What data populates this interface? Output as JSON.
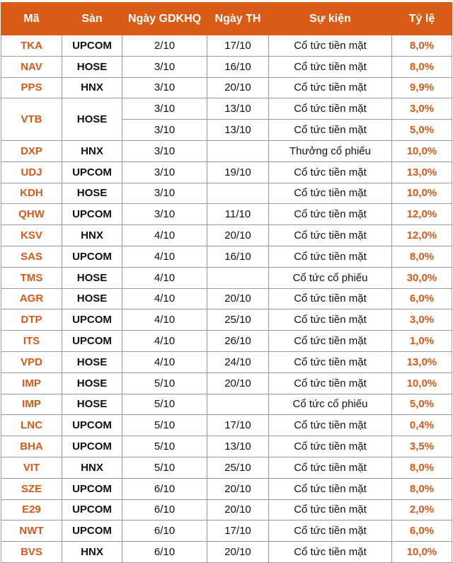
{
  "headers": [
    "Mã",
    "Sàn",
    "Ngày GDKHQ",
    "Ngày TH",
    "Sự kiện",
    "Tỷ lệ"
  ],
  "rows": [
    {
      "ma": "TKA",
      "san": "UPCOM",
      "gdkhq": "2/10",
      "th": "17/10",
      "sukien": "Cổ tức tiền mặt",
      "tyle": "8,0%"
    },
    {
      "ma": "NAV",
      "san": "HOSE",
      "gdkhq": "3/10",
      "th": "16/10",
      "sukien": "Cổ tức tiền mặt",
      "tyle": "8,0%"
    },
    {
      "ma": "PPS",
      "san": "HNX",
      "gdkhq": "3/10",
      "th": "20/10",
      "sukien": "Cổ tức tiền mặt",
      "tyle": "9,9%"
    },
    {
      "ma": "VTB",
      "san": "HOSE",
      "gdkhq": "3/10",
      "th": "13/10",
      "sukien": "Cổ tức tiền mặt",
      "tyle": "3,0%"
    },
    {
      "gdkhq": "3/10",
      "th": "13/10",
      "sukien": "Cổ tức tiền mặt",
      "tyle": "5,0%"
    },
    {
      "ma": "DXP",
      "san": "HNX",
      "gdkhq": "3/10",
      "th": "",
      "sukien": "Thưởng cổ phiếu",
      "tyle": "10,0%"
    },
    {
      "ma": "UDJ",
      "san": "UPCOM",
      "gdkhq": "3/10",
      "th": "19/10",
      "sukien": "Cổ tức tiền mặt",
      "tyle": "13,0%"
    },
    {
      "ma": "KDH",
      "san": "HOSE",
      "gdkhq": "3/10",
      "th": "",
      "sukien": "Cổ tức tiền mặt",
      "tyle": "10,0%"
    },
    {
      "ma": "QHW",
      "san": "UPCOM",
      "gdkhq": "3/10",
      "th": "11/10",
      "sukien": "Cổ tức tiền mặt",
      "tyle": "12,0%"
    },
    {
      "ma": "KSV",
      "san": "HNX",
      "gdkhq": "4/10",
      "th": "20/10",
      "sukien": "Cổ tức tiền mặt",
      "tyle": "12,0%"
    },
    {
      "ma": "SAS",
      "san": "UPCOM",
      "gdkhq": "4/10",
      "th": "16/10",
      "sukien": "Cổ tức tiền mặt",
      "tyle": "8,0%"
    },
    {
      "ma": "TMS",
      "san": "HOSE",
      "gdkhq": "4/10",
      "th": "",
      "sukien": "Cổ tức cổ phiếu",
      "tyle": "30,0%"
    },
    {
      "ma": "AGR",
      "san": "HOSE",
      "gdkhq": "4/10",
      "th": "20/10",
      "sukien": "Cổ tức tiền mặt",
      "tyle": "6,0%"
    },
    {
      "ma": "DTP",
      "san": "UPCOM",
      "gdkhq": "4/10",
      "th": "25/10",
      "sukien": "Cổ tức tiền mặt",
      "tyle": "3,0%"
    },
    {
      "ma": "ITS",
      "san": "UPCOM",
      "gdkhq": "4/10",
      "th": "26/10",
      "sukien": "Cổ tức tiền mặt",
      "tyle": "1,0%"
    },
    {
      "ma": "VPD",
      "san": "HOSE",
      "gdkhq": "4/10",
      "th": "24/10",
      "sukien": "Cổ tức tiền mặt",
      "tyle": "13,0%"
    },
    {
      "ma": "IMP",
      "san": "HOSE",
      "gdkhq": "5/10",
      "th": "20/10",
      "sukien": "Cổ tức tiền mặt",
      "tyle": "10,0%"
    },
    {
      "ma": "IMP",
      "san": "HOSE",
      "gdkhq": "5/10",
      "th": "",
      "sukien": "Cổ tức cổ phiếu",
      "tyle": "5,0%"
    },
    {
      "ma": "LNC",
      "san": "UPCOM",
      "gdkhq": "5/10",
      "th": "17/10",
      "sukien": "Cổ tức tiền mặt",
      "tyle": "0,4%"
    },
    {
      "ma": "BHA",
      "san": "UPCOM",
      "gdkhq": "5/10",
      "th": "13/10",
      "sukien": "Cổ tức tiền mặt",
      "tyle": "3,5%"
    },
    {
      "ma": "VIT",
      "san": "HNX",
      "gdkhq": "5/10",
      "th": "25/10",
      "sukien": "Cổ tức tiền mặt",
      "tyle": "8,0%"
    },
    {
      "ma": "SZE",
      "san": "UPCOM",
      "gdkhq": "6/10",
      "th": "20/10",
      "sukien": "Cổ tức tiền mặt",
      "tyle": "8,0%"
    },
    {
      "ma": "E29",
      "san": "UPCOM",
      "gdkhq": "6/10",
      "th": "20/10",
      "sukien": "Cổ tức tiền mặt",
      "tyle": "2,0%"
    },
    {
      "ma": "NWT",
      "san": "UPCOM",
      "gdkhq": "6/10",
      "th": "17/10",
      "sukien": "Cổ tức tiền mặt",
      "tyle": "6,0%"
    },
    {
      "ma": "BVS",
      "san": "HNX",
      "gdkhq": "6/10",
      "th": "20/10",
      "sukien": "Cổ tức tiền mặt",
      "tyle": "10,0%"
    }
  ],
  "colors": {
    "header_bg": "#d95b16",
    "accent_text": "#d35a18",
    "border": "#9a9a9a"
  }
}
